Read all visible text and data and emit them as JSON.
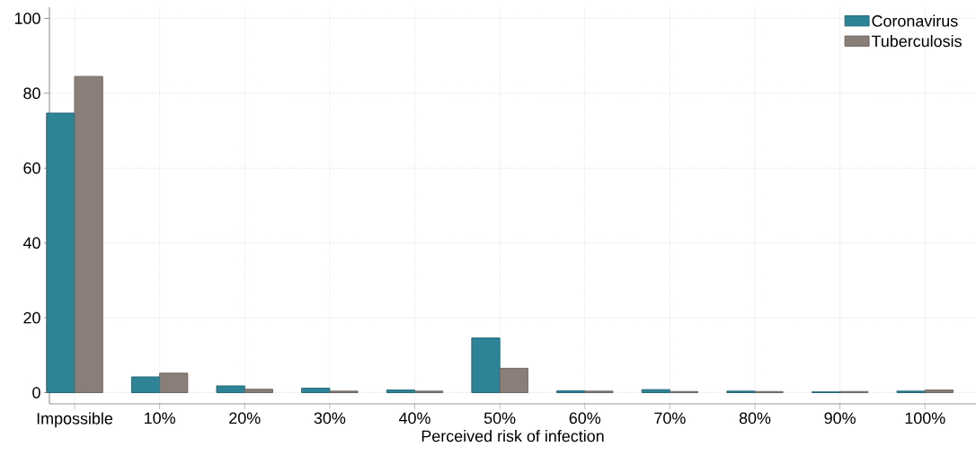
{
  "chart_data": {
    "type": "bar",
    "xlabel": "Perceived risk of infection",
    "categories": [
      "Impossible",
      "10%",
      "20%",
      "30%",
      "40%",
      "50%",
      "60%",
      "70%",
      "80%",
      "90%",
      "100%"
    ],
    "series": [
      {
        "name": "Coronavirus",
        "color": "#2e8397",
        "values": [
          74.7,
          4.2,
          1.8,
          1.2,
          0.7,
          14.6,
          0.5,
          0.8,
          0.4,
          0.2,
          0.4
        ]
      },
      {
        "name": "Tuberculosis",
        "color": "#897f78",
        "values": [
          84.5,
          5.2,
          0.9,
          0.4,
          0.4,
          6.5,
          0.4,
          0.3,
          0.3,
          0.3,
          0.7
        ]
      }
    ],
    "ylim": [
      -3,
      103
    ],
    "yticks": [
      0,
      20,
      40,
      60,
      80,
      100
    ],
    "grid": true,
    "legend": "top right"
  }
}
